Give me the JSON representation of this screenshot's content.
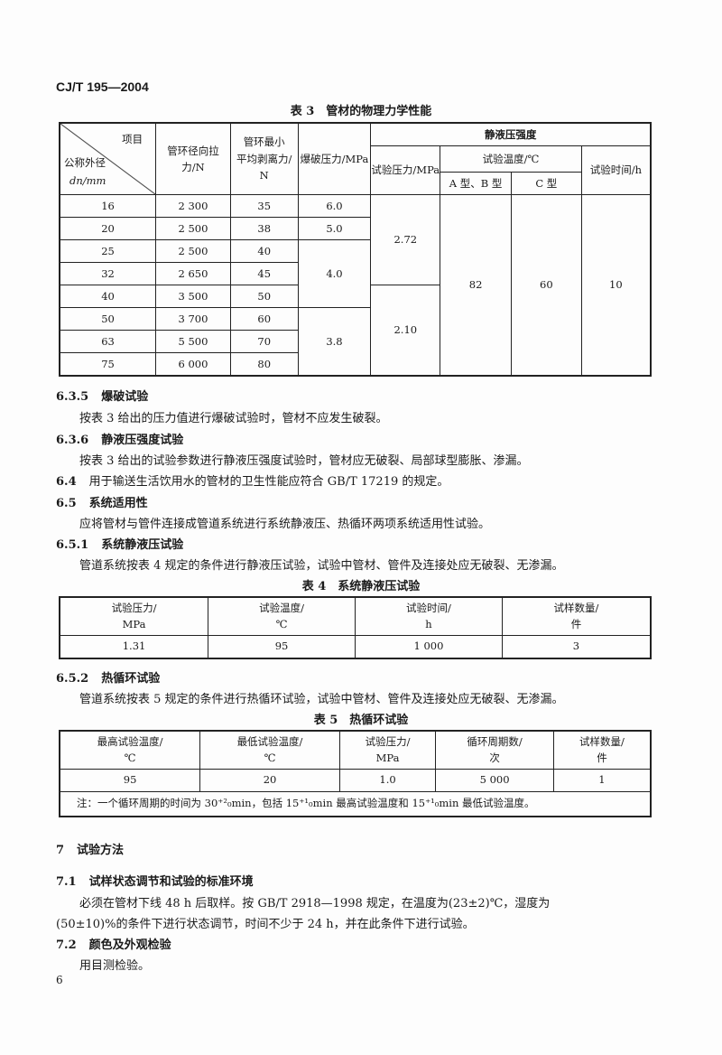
{
  "header": "CJ/T 195—2004",
  "table3": {
    "caption": "表 3　管材的物理力学性能",
    "corner_top": "项目",
    "corner_bottom1": "公称外径",
    "corner_bottom2": "dn/mm",
    "h1": "管环径向拉力/N",
    "h2a": "管环最小",
    "h2b": "平均剥离力/",
    "h2c": "N",
    "h3": "爆破压力/MPa",
    "h4": "静液压强度",
    "h5": "试验压力/MPa",
    "h6": "试验温度/℃",
    "h7": "A 型、B 型",
    "h8": "C 型",
    "h9": "试验时间/h",
    "rows": [
      {
        "d": "16",
        "pull": "2 300",
        "peel": "35"
      },
      {
        "d": "20",
        "pull": "2 500",
        "peel": "38"
      },
      {
        "d": "25",
        "pull": "2 500",
        "peel": "40"
      },
      {
        "d": "32",
        "pull": "2 650",
        "peel": "45"
      },
      {
        "d": "40",
        "pull": "3 500",
        "peel": "50"
      },
      {
        "d": "50",
        "pull": "3 700",
        "peel": "60"
      },
      {
        "d": "63",
        "pull": "5 500",
        "peel": "70"
      },
      {
        "d": "75",
        "pull": "6 000",
        "peel": "80"
      }
    ],
    "burst": [
      "6.0",
      "5.0",
      "4.0",
      "3.8"
    ],
    "test_pressure": [
      "2.72",
      "2.10"
    ],
    "temp_ab": "82",
    "temp_c": "60",
    "time": "10"
  },
  "s635": {
    "num": "6.3.5",
    "title": "爆破试验",
    "text": "按表 3 给出的压力值进行爆破试验时，管材不应发生破裂。"
  },
  "s636": {
    "num": "6.3.6",
    "title": "静液压强度试验",
    "text": "按表 3 给出的试验参数进行静液压强度试验时，管材应无破裂、局部球型膨胀、渗漏。"
  },
  "s64": {
    "num": "6.4",
    "text": "用于输送生活饮用水的管材的卫生性能应符合 GB/T 17219 的规定。"
  },
  "s65": {
    "num": "6.5",
    "title": "系统适用性",
    "text": "应将管材与管件连接成管道系统进行系统静液压、热循环两项系统适用性试验。"
  },
  "s651": {
    "num": "6.5.1",
    "title": "系统静液压试验",
    "text": "管道系统按表 4 规定的条件进行静液压试验，试验中管材、管件及连接处应无破裂、无渗漏。"
  },
  "table4": {
    "caption": "表 4　系统静液压试验",
    "headers": [
      [
        "试验压力/",
        "MPa"
      ],
      [
        "试验温度/",
        "℃"
      ],
      [
        "试验时间/",
        "h"
      ],
      [
        "试样数量/",
        "件"
      ]
    ],
    "values": [
      "1.31",
      "95",
      "1 000",
      "3"
    ]
  },
  "s652": {
    "num": "6.5.2",
    "title": "热循环试验",
    "text": "管道系统按表 5 规定的条件进行热循环试验，试验中管材、管件及连接处应无破裂、无渗漏。"
  },
  "table5": {
    "caption": "表 5　热循环试验",
    "headers": [
      [
        "最高试验温度/",
        "℃"
      ],
      [
        "最低试验温度/",
        "℃"
      ],
      [
        "试验压力/",
        "MPa"
      ],
      [
        "循环周期数/",
        "次"
      ],
      [
        "试样数量/",
        "件"
      ]
    ],
    "values": [
      "95",
      "20",
      "1.0",
      "5 000",
      "1"
    ],
    "note": "注：一个循环周期的时间为 30⁺²₀min，包括 15⁺¹₀min 最高试验温度和 15⁺¹₀min 最低试验温度。"
  },
  "s7": {
    "num": "7",
    "title": "试验方法"
  },
  "s71": {
    "num": "7.1",
    "title": "试样状态调节和试验的标准环境",
    "text1": "必须在管材下线 48 h 后取样。按 GB/T 2918—1998 规定，在温度为(23±2)℃，湿度为",
    "text2": "(50±10)%的条件下进行状态调节，时间不少于 24 h，并在此条件下进行试验。"
  },
  "s72": {
    "num": "7.2",
    "title": "颜色及外观检验",
    "text": "用目测检验。"
  },
  "page_number": "6"
}
